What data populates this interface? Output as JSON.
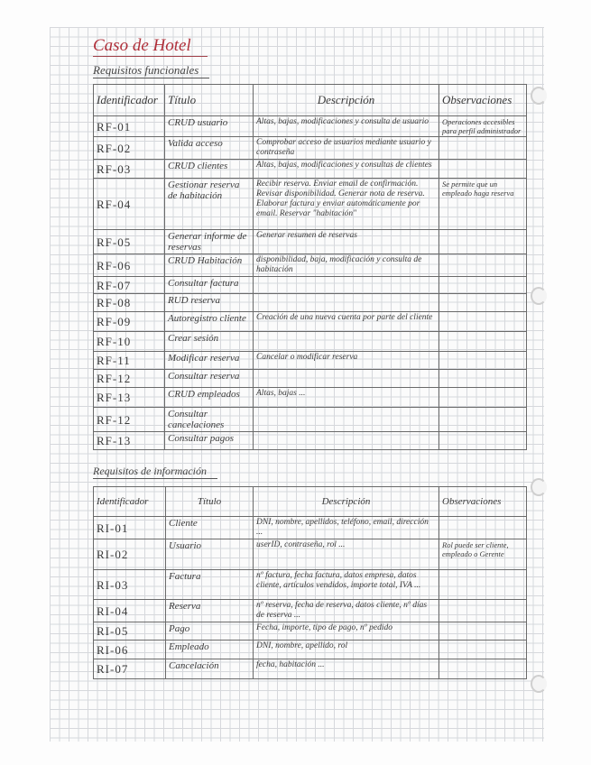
{
  "title": "Caso de Hotel",
  "colors": {
    "title": "#b0303a",
    "ink": "#3a3a3a"
  },
  "functional": {
    "heading": "Requisitos funcionales",
    "headers": [
      "Identificador",
      "Título",
      "Descripción",
      "Observaciones"
    ],
    "rows": [
      {
        "id": "RF-01",
        "title": "CRUD usuario",
        "desc": "Altas, bajas, modificaciones y consulta de usuario",
        "obs": "Operaciones accesibles para perfil administrador"
      },
      {
        "id": "RF-02",
        "title": "Valida acceso",
        "desc": "Comprobar acceso de usuarios mediante usuario y contraseña",
        "obs": ""
      },
      {
        "id": "RF-03",
        "title": "CRUD clientes",
        "desc": "Altas, bajas, modificaciones y consultas de clientes",
        "obs": ""
      },
      {
        "id": "RF-04",
        "title": "Gestionar reserva de habitación",
        "desc": "Recibir reserva. Enviar email de confirmación. Revisar disponibilidad. Generar nota de reserva. Elaborar factura y enviar automáticamente por email. Reservar \"habitación\"",
        "obs": "Se permite que un empleado haga reserva"
      },
      {
        "id": "RF-05",
        "title": "Generar informe de reservas",
        "desc": "Generar resumen de reservas",
        "obs": ""
      },
      {
        "id": "RF-06",
        "title": "CRUD Habitación",
        "desc": "disponibilidad, baja, modificación y consulta de habitación",
        "obs": ""
      },
      {
        "id": "RF-07",
        "title": "Consultar factura",
        "desc": "",
        "obs": ""
      },
      {
        "id": "RF-08",
        "title": "RUD reserva",
        "desc": "",
        "obs": ""
      },
      {
        "id": "RF-09",
        "title": "Autoregistro cliente",
        "desc": "Creación de una nueva cuenta por parte del cliente",
        "obs": ""
      },
      {
        "id": "RF-10",
        "title": "Crear sesión",
        "desc": "",
        "obs": ""
      },
      {
        "id": "RF-11",
        "title": "Modificar reserva",
        "desc": "Cancelar o modificar reserva",
        "obs": ""
      },
      {
        "id": "RF-12",
        "title": "Consultar reserva",
        "desc": "",
        "obs": ""
      },
      {
        "id": "RF-13",
        "title": "CRUD empleados",
        "desc": "Altas, bajas ...",
        "obs": ""
      },
      {
        "id": "RF-12",
        "title": "Consultar cancelaciones",
        "desc": "",
        "obs": ""
      },
      {
        "id": "RF-13",
        "title": "Consultar pagos",
        "desc": "",
        "obs": ""
      }
    ]
  },
  "information": {
    "heading": "Requisitos de información",
    "headers": [
      "Identificador",
      "Título",
      "Descripción",
      "Observaciones"
    ],
    "rows": [
      {
        "id": "RI-01",
        "title": "Cliente",
        "desc": "DNI, nombre, apellidos, teléfono, email, dirección ...",
        "obs": ""
      },
      {
        "id": "RI-02",
        "title": "Usuario",
        "desc": "userID, contraseña, rol ...",
        "obs": "Rol puede ser cliente, empleado o Gerente"
      },
      {
        "id": "RI-03",
        "title": "Factura",
        "desc": "nº factura, fecha factura, datos empresa, datos cliente, artículos vendidos, importe total, IVA ...",
        "obs": ""
      },
      {
        "id": "RI-04",
        "title": "Reserva",
        "desc": "nº reserva, fecha de reserva, datos cliente, nº días de reserva ...",
        "obs": ""
      },
      {
        "id": "RI-05",
        "title": "Pago",
        "desc": "Fecha, importe, tipo de pago, nº pedido",
        "obs": ""
      },
      {
        "id": "RI-06",
        "title": "Empleado",
        "desc": "DNI, nombre, apellido, rol",
        "obs": ""
      },
      {
        "id": "RI-07",
        "title": "Cancelación",
        "desc": "fecha, habitación ...",
        "obs": ""
      }
    ]
  }
}
